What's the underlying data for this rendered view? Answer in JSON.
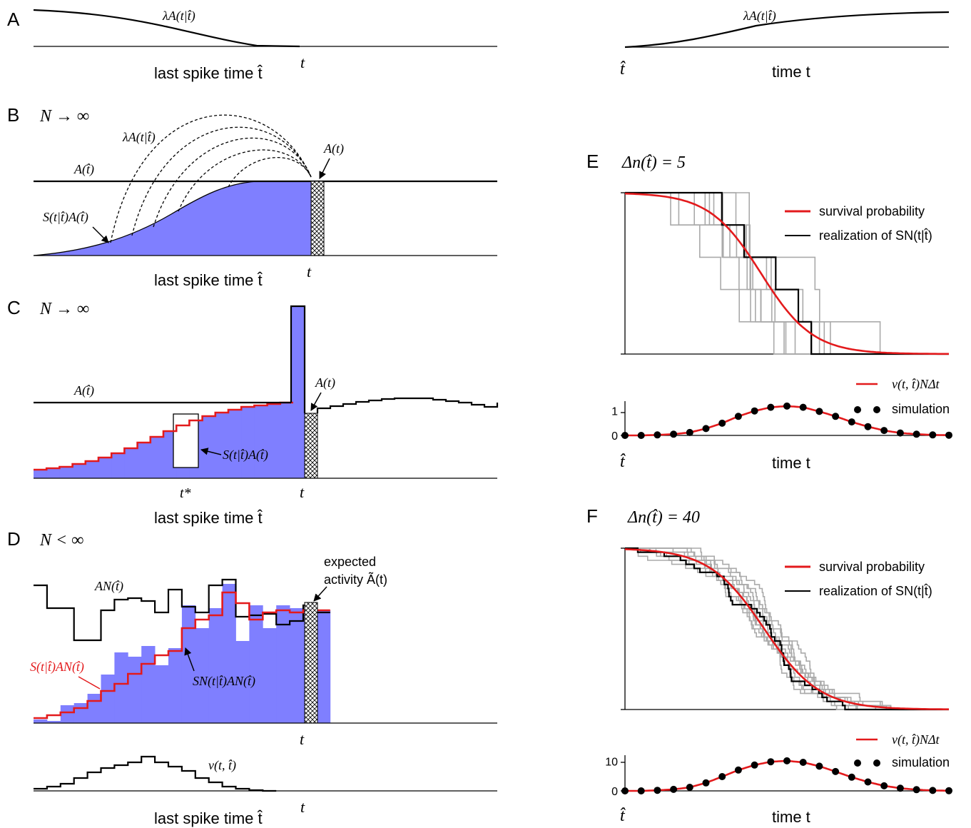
{
  "panel_labels": [
    "A",
    "B",
    "C",
    "D",
    "E",
    "F"
  ],
  "panel_titles": {
    "B": "N → ∞",
    "C": "N → ∞",
    "D": "N < ∞",
    "E": "Δn(t̂) = 5",
    "F": "Δn(t̂) = 40"
  },
  "axis_labels": {
    "last_spike_time": "last spike time t̂",
    "time_t": "time t",
    "t": "t",
    "t_hat": "t̂",
    "t_star": "t*"
  },
  "annotations": {
    "lambda": "λA(t|t̂)",
    "A_that": "A(t̂)",
    "A_t": "A(t)",
    "S_A": "S(t|t̂)A(t̂)",
    "AN": "AN(t̂)",
    "S_AN_red": "S(t|t̂)AN(t̂)",
    "SN_AN": "SN(t|t̂)AN(t̂)",
    "expected_1": "expected",
    "expected_2": "activity Ã(t)",
    "v": "v(t, t̂)"
  },
  "legend": {
    "survival": "survival probability",
    "realization": "realization of SN(t|t̂)",
    "v_label": "v(t, t̂)NΔt",
    "simulation": "simulation"
  },
  "colors": {
    "red": "#e31a1c",
    "blue": "#7f7fff",
    "gray": "#aaaaaa",
    "black": "#000000"
  },
  "chart_data": [
    {
      "panel": "E-bottom",
      "type": "scatter",
      "x": [
        0,
        1,
        2,
        3,
        4,
        5,
        6,
        7,
        8,
        9,
        10,
        11,
        12,
        13,
        14,
        15,
        16,
        17,
        18,
        19,
        20
      ],
      "series": [
        {
          "name": "simulation",
          "values": [
            0.0,
            0.0,
            0.02,
            0.05,
            0.12,
            0.28,
            0.5,
            0.78,
            1.0,
            1.15,
            1.2,
            1.15,
            0.98,
            0.78,
            0.55,
            0.36,
            0.2,
            0.1,
            0.05,
            0.02,
            0.01
          ]
        }
      ],
      "yticks": [
        0,
        1
      ],
      "ylim": [
        0,
        1.4
      ]
    },
    {
      "panel": "F-bottom",
      "type": "scatter",
      "x": [
        0,
        1,
        2,
        3,
        4,
        5,
        6,
        7,
        8,
        9,
        10,
        11,
        12,
        13,
        14,
        15,
        16,
        17,
        18,
        19,
        20
      ],
      "series": [
        {
          "name": "simulation",
          "values": [
            0,
            0,
            0.2,
            0.5,
            1.2,
            2.7,
            4.8,
            7.0,
            8.7,
            9.8,
            10.1,
            9.6,
            8.3,
            6.5,
            4.6,
            3.0,
            1.7,
            0.9,
            0.4,
            0.15,
            0.05
          ]
        }
      ],
      "yticks": [
        0,
        10
      ],
      "ylim": [
        0,
        12
      ]
    }
  ]
}
